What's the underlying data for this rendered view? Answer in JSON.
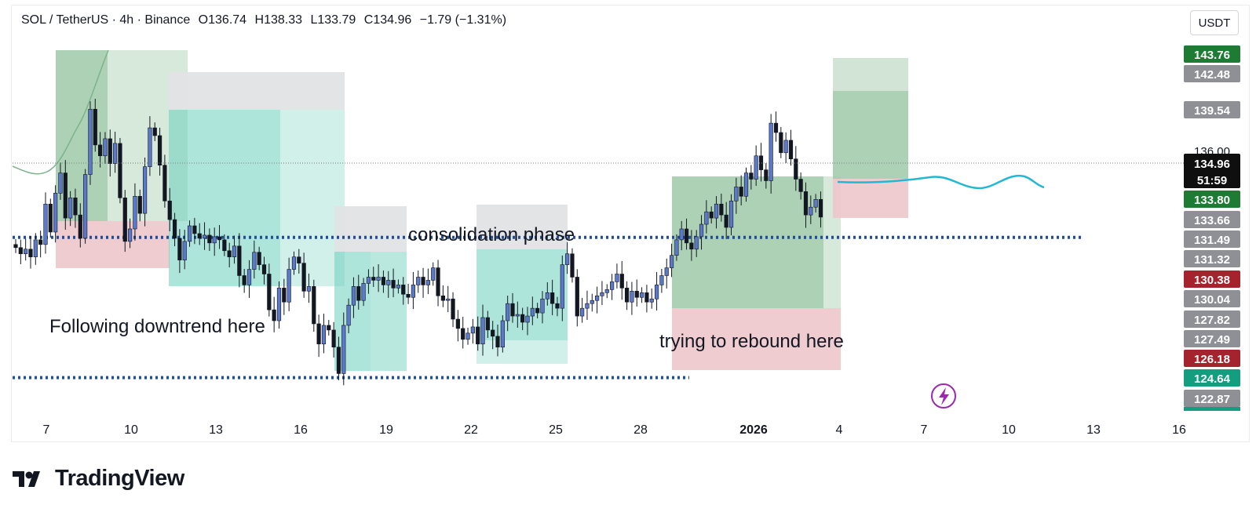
{
  "header": {
    "symbol": "SOL / TetherUS · 4h · Binance",
    "open": "O136.74",
    "high": "H138.33",
    "low": "L133.79",
    "close": "C134.96",
    "change": "−1.79 (−1.31%)"
  },
  "currency": "USDT",
  "watermark": "TradingView",
  "colors": {
    "up": "#5b78c9",
    "down": "#131722",
    "target_zone": "#b9dcc3",
    "stop_zone": "#ecc6cb",
    "consolidation_zone": "#6ccfbc",
    "level_line": "#1f4e9a",
    "projection": "#22b8d4"
  },
  "annotations": {
    "downtrend": "Following downtrend here",
    "consolidation": "consolidation phase",
    "rebound": "trying to rebound here"
  },
  "chart_data": {
    "type": "candlestick",
    "title": "SOL / TetherUS · 4h · Binance",
    "ylabel": "USDT",
    "ylim": [
      122.2,
      146.4
    ],
    "x_ticks": [
      "7",
      "10",
      "13",
      "16",
      "19",
      "22",
      "25",
      "28",
      "2026",
      "4",
      "7",
      "10",
      "13",
      "16"
    ],
    "price_labels": [
      {
        "value": 143.76,
        "text": "143.76",
        "bg": "#1e7b34",
        "fg": "#ffffff"
      },
      {
        "value": 142.48,
        "text": "142.48",
        "bg": "#8e9096",
        "fg": "#ffffff"
      },
      {
        "value": 139.54,
        "text": "139.54",
        "bg": "#8e9096",
        "fg": "#ffffff"
      },
      {
        "value": 136.0,
        "text": "136.00",
        "bg": "",
        "fg": "#131722"
      },
      {
        "value": 134.96,
        "text": "134.96",
        "bg": "#0f0f0f",
        "fg": "#ffffff",
        "sub": "51:59"
      },
      {
        "value": 133.8,
        "text": "133.80",
        "bg": "#1e7b34",
        "fg": "#ffffff"
      },
      {
        "value": 133.66,
        "text": "133.66",
        "bg": "#8e9096",
        "fg": "#ffffff"
      },
      {
        "value": 131.49,
        "text": "131.49",
        "bg": "#8e9096",
        "fg": "#ffffff"
      },
      {
        "value": 131.32,
        "text": "131.32",
        "bg": "#8e9096",
        "fg": "#ffffff"
      },
      {
        "value": 130.38,
        "text": "130.38",
        "bg": "#a5232c",
        "fg": "#ffffff"
      },
      {
        "value": 130.04,
        "text": "130.04",
        "bg": "#8e9096",
        "fg": "#ffffff"
      },
      {
        "value": 127.82,
        "text": "127.82",
        "bg": "#8e9096",
        "fg": "#ffffff"
      },
      {
        "value": 127.49,
        "text": "127.49",
        "bg": "#8e9096",
        "fg": "#ffffff"
      },
      {
        "value": 126.18,
        "text": "126.18",
        "bg": "#a5232c",
        "fg": "#ffffff"
      },
      {
        "value": 124.64,
        "text": "124.64",
        "bg": "#129e7f",
        "fg": "#ffffff"
      },
      {
        "value": 122.87,
        "text": "122.87",
        "bg": "#8e9096",
        "fg": "#ffffff"
      }
    ],
    "levels": [
      {
        "name": "resistance-level",
        "value": 133.66
      },
      {
        "name": "support-level",
        "value": 124.64
      }
    ],
    "close_series": [
      133.0,
      132.6,
      132.9,
      132.4,
      133.5,
      133.2,
      135.8,
      134.0,
      136.5,
      137.8,
      134.9,
      136.2,
      135.1,
      133.6,
      137.7,
      141.9,
      139.6,
      138.9,
      140.0,
      138.4,
      139.7,
      136.2,
      133.4,
      134.2,
      136.3,
      135.2,
      138.2,
      140.7,
      140.2,
      138.3,
      136.0,
      134.8,
      133.6,
      132.2,
      133.4,
      134.4,
      133.9,
      133.6,
      133.8,
      133.3,
      133.7,
      133.5,
      132.8,
      132.4,
      133.1,
      131.2,
      130.6,
      131.6,
      132.7,
      131.9,
      131.3,
      129.0,
      128.3,
      130.4,
      129.5,
      131.6,
      132.4,
      132.0,
      130.2,
      130.5,
      128.1,
      126.8,
      128.0,
      127.7,
      126.6,
      124.9,
      128.0,
      129.3,
      130.5,
      129.6,
      130.7,
      131.1,
      130.9,
      131.1,
      130.6,
      130.9,
      130.4,
      130.6,
      130.0,
      129.8,
      130.6,
      131.1,
      130.6,
      130.9,
      131.7,
      129.9,
      129.6,
      129.7,
      128.4,
      127.8,
      127.1,
      127.5,
      127.9,
      126.8,
      128.5,
      127.7,
      127.3,
      126.6,
      128.3,
      129.4,
      128.6,
      128.7,
      128.2,
      128.6,
      129.1,
      128.8,
      129.7,
      130.1,
      129.4,
      129.1,
      131.9,
      132.6,
      131.1,
      128.6,
      129.1,
      129.4,
      129.6,
      129.9,
      130.1,
      130.3,
      130.8,
      131.3,
      130.4,
      129.5,
      130.2,
      129.8,
      130.1,
      129.5,
      129.7,
      130.6,
      131.2,
      131.7,
      132.5,
      133.5,
      134.2,
      133.3,
      132.9,
      133.7,
      134.5,
      135.3,
      134.9,
      135.8,
      135.1,
      134.3,
      136.0,
      136.9,
      136.3,
      137.8,
      137.4,
      138.9,
      138.0,
      137.3,
      141.0,
      140.4,
      139.1,
      139.9,
      138.7,
      137.4,
      136.6,
      135.1,
      135.6,
      136.1,
      134.96
    ]
  }
}
